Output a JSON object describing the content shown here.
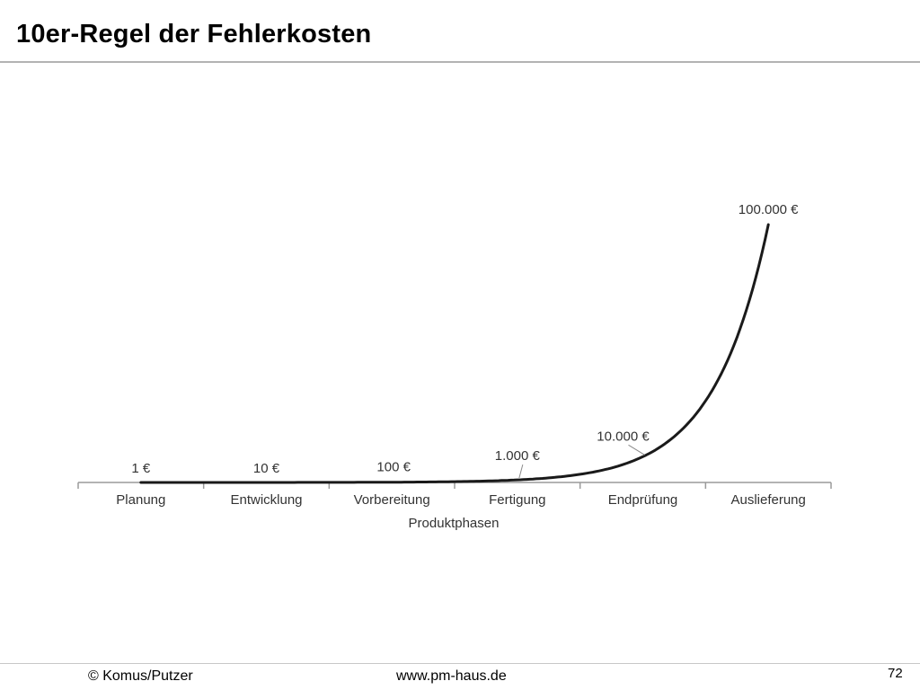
{
  "slide": {
    "title": "10er-Regel der Fehlerkosten"
  },
  "footer": {
    "copyright": "© Komus/Putzer",
    "website": "www.pm-haus.de",
    "page_number": "72"
  },
  "chart_data": {
    "type": "line",
    "categories": [
      "Planung",
      "Entwicklung",
      "Vorbereitung",
      "Fertigung",
      "Endprüfung",
      "Auslieferung"
    ],
    "values": [
      1,
      10,
      100,
      1000,
      10000,
      100000
    ],
    "value_labels": [
      "1 €",
      "10 €",
      "100 €",
      "1.000 €",
      "10.000 €",
      "100.000 €"
    ],
    "title": "",
    "xlabel": "Produktphasen",
    "ylabel": "",
    "ylim": [
      0,
      100000
    ],
    "grid": false,
    "legend": "none",
    "line_color": "#1a1a1a",
    "axis_color": "#9a9a9a",
    "label_color": "#333333"
  }
}
